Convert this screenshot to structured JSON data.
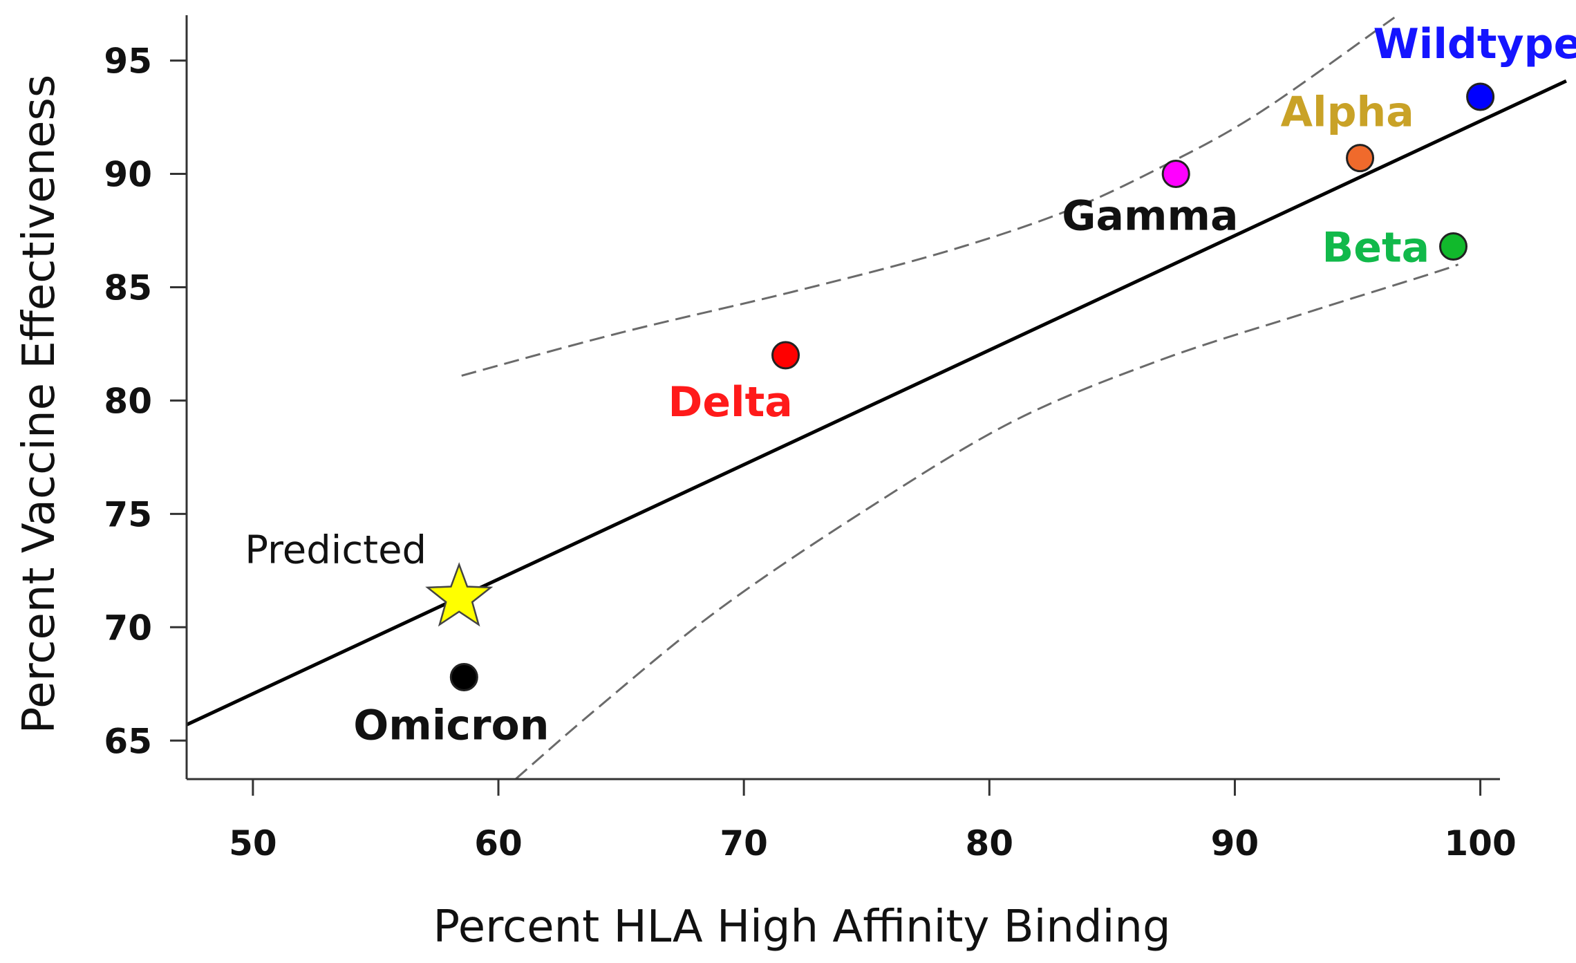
{
  "chart_data": {
    "type": "scatter",
    "title": "",
    "xlabel": "Percent HLA High Affinity Binding",
    "ylabel": "Percent Vaccine Effectiveness",
    "xlim": [
      47.3,
      100.8
    ],
    "ylim": [
      63.3,
      97.0
    ],
    "xticks": [
      50,
      60,
      70,
      80,
      90,
      100
    ],
    "yticks": [
      65,
      70,
      75,
      80,
      85,
      90,
      95
    ],
    "xtick_labels": [
      "50",
      "60",
      "70",
      "80",
      "90",
      "100"
    ],
    "ytick_labels": [
      "65",
      "70",
      "75",
      "80",
      "85",
      "90",
      "95"
    ],
    "grid": false,
    "points": [
      {
        "name": "Wildtype",
        "x": 100.0,
        "y": 93.4,
        "color": "#0000ff"
      },
      {
        "name": "Alpha",
        "x": 95.1,
        "y": 90.7,
        "color": "#f06a2c"
      },
      {
        "name": "Gamma",
        "x": 87.6,
        "y": 90.0,
        "color": "#ff00ff"
      },
      {
        "name": "Beta",
        "x": 98.9,
        "y": 86.8,
        "color": "#11b92c"
      },
      {
        "name": "Delta",
        "x": 71.7,
        "y": 82.0,
        "color": "#ff0000"
      },
      {
        "name": "Omicron",
        "x": 58.6,
        "y": 67.8,
        "color": "#000000"
      }
    ],
    "label_colors": {
      "Wildtype": "#1414ff",
      "Alpha": "#c9a227",
      "Gamma": "#111111",
      "Beta": "#11b94a",
      "Delta": "#ff1a1a",
      "Omicron": "#111111"
    },
    "predicted": {
      "label": "Predicted",
      "x": 58.4,
      "y": 71.3,
      "color": "#ffff00"
    },
    "fit_line": {
      "x": [
        47.3,
        103.5
      ],
      "y": [
        65.7,
        94.1
      ]
    },
    "confidence_band": {
      "upper": {
        "x": [
          58.5,
          65,
          72,
          78,
          83,
          87,
          91,
          96.5
        ],
        "y": [
          81.1,
          83.0,
          84.8,
          86.5,
          88.3,
          90.3,
          92.7,
          96.9
        ]
      },
      "lower": {
        "x": [
          60.7,
          64,
          69,
          75,
          81,
          87,
          93,
          98,
          99.1
        ],
        "y": [
          63.3,
          66.4,
          70.8,
          75.2,
          79.1,
          81.8,
          83.9,
          85.6,
          86.0
        ]
      }
    }
  }
}
